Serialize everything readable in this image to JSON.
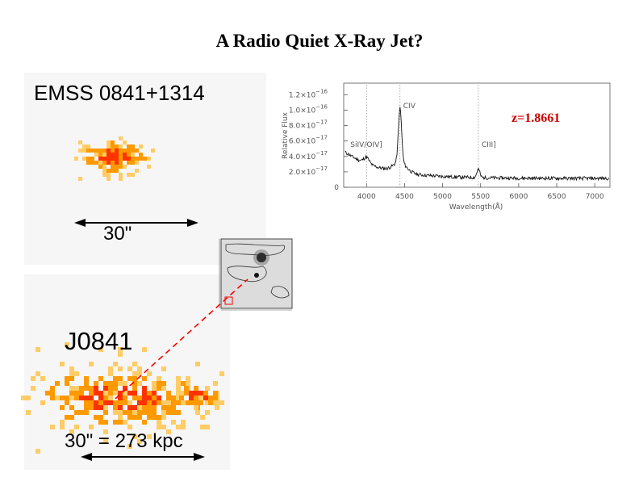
{
  "title": "A Radio Quiet X-Ray Jet?",
  "top_source": {
    "name": "EMSS 0841+1314",
    "scale_label": "30\""
  },
  "bottom_source": {
    "name": "J0841",
    "scale_label": "30\" = 273 kpc"
  },
  "spectrum": {
    "redshift_label": "z=1.8661",
    "xlabel": "Wavelength(Å)",
    "ylabel": "Relative Flux",
    "x_ticks": [
      "4000",
      "4500",
      "5000",
      "5500",
      "6000",
      "6500",
      "7000"
    ],
    "y_ticks": [
      {
        "mant": "0",
        "exp": ""
      },
      {
        "mant": "2.0×10",
        "exp": "−17"
      },
      {
        "mant": "4.0×10",
        "exp": "−17"
      },
      {
        "mant": "6.0×10",
        "exp": "−17"
      },
      {
        "mant": "8.0×10",
        "exp": "−17"
      },
      {
        "mant": "1.0×10",
        "exp": "−16"
      },
      {
        "mant": "1.2×10",
        "exp": "−16"
      }
    ],
    "lines": [
      {
        "name": "SiIV/OIV]",
        "wavelength": 4000
      },
      {
        "name": "CIV",
        "wavelength": 4440
      },
      {
        "name": "CIII]",
        "wavelength": 5470
      }
    ]
  },
  "colors": {
    "accent": "#ff0000",
    "emission_core": "#ff3300",
    "emission_mid": "#ff9900",
    "emission_faint": "#ffcc66"
  }
}
